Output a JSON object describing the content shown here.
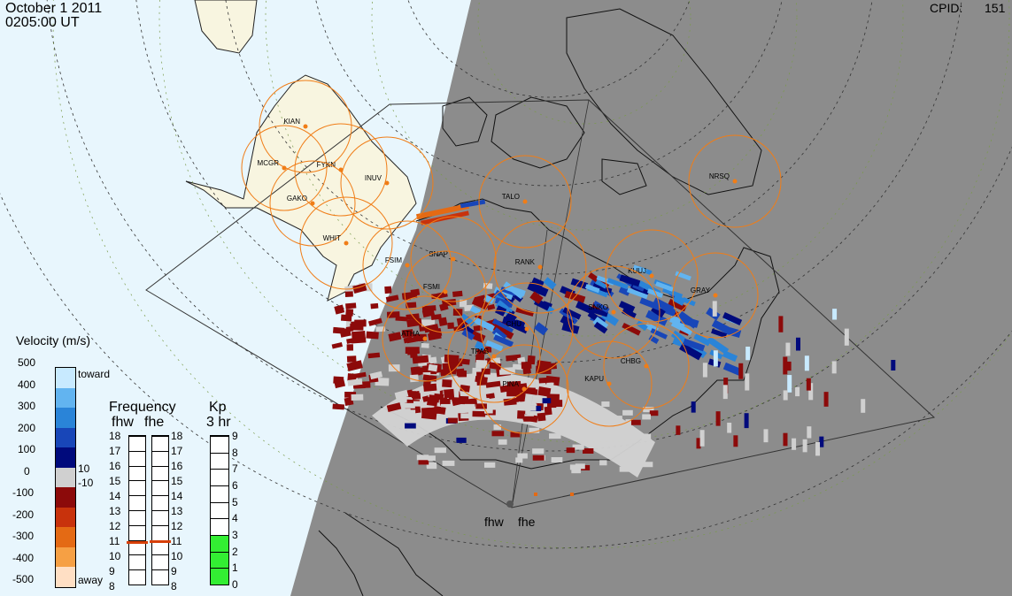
{
  "header": {
    "date": "October  1 2011",
    "time": "0205:00 UT",
    "cpid_label": "CPID:",
    "cpid_value": "151"
  },
  "stations": [
    {
      "code": "KIAN"
    },
    {
      "code": "MCGR"
    },
    {
      "code": "FYKN"
    },
    {
      "code": "INUV"
    },
    {
      "code": "GAKO"
    },
    {
      "code": "WHIT"
    },
    {
      "code": "TALO"
    },
    {
      "code": "NRSQ"
    },
    {
      "code": "FSIM"
    },
    {
      "code": "SNAP"
    },
    {
      "code": "RANK"
    },
    {
      "code": "KUUJ"
    },
    {
      "code": "GRAY"
    },
    {
      "code": "FSMI"
    },
    {
      "code": "SNKO"
    },
    {
      "code": "ATHA"
    },
    {
      "code": "CHU"
    },
    {
      "code": "TPAS"
    },
    {
      "code": "CHBG"
    },
    {
      "code": "KAPU"
    },
    {
      "code": "PINA"
    }
  ],
  "radars": [
    "fhw",
    "fhe"
  ],
  "velocity_legend": {
    "title": "Velocity (m/s)",
    "ticks": [
      "500",
      "400",
      "300",
      "200",
      "100",
      "0",
      "-100",
      "-200",
      "-300",
      "-400",
      "-500"
    ],
    "toward_label": "toward",
    "away_label": "away",
    "pos_small": "10",
    "neg_small": "-10",
    "colors": [
      "#ffdfc4",
      "#f6a044",
      "#e46a14",
      "#c8320c",
      "#8c0a0a",
      "#d0d0d0",
      "#000a7c",
      "#1846b8",
      "#2a84d8",
      "#62b4f0",
      "#c8eaff"
    ]
  },
  "frequency_legend": {
    "title": "Frequency",
    "subtitle_left": "fhw",
    "subtitle_right": "fhe",
    "ticks": [
      "18",
      "17",
      "16",
      "15",
      "14",
      "13",
      "12",
      "11",
      "10",
      "9",
      "8"
    ],
    "fhw_value": 10.9,
    "fhe_value": 11.0,
    "marker_color": "#d8400a"
  },
  "kp_legend": {
    "title": "Kp",
    "subtitle": "3 hr",
    "ticks": [
      "9",
      "8",
      "7",
      "6",
      "5",
      "4",
      "3",
      "2",
      "1",
      "0"
    ],
    "value": 3,
    "fill_color": "#33ee33"
  },
  "colors": {
    "sunlit": "#e8f6fd",
    "night": "#8c8c8c",
    "land": "#f8f5e0",
    "fov": "#d4d4d4",
    "station": "#f07d17"
  }
}
